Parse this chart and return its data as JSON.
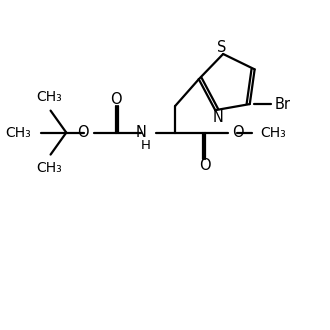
{
  "background": "#ffffff",
  "line_color": "#000000",
  "line_width": 1.6,
  "font_size": 10.5,
  "figure_size": [
    3.3,
    3.3
  ],
  "dpi": 100,
  "xlim": [
    0,
    10
  ],
  "ylim": [
    0,
    10
  ]
}
